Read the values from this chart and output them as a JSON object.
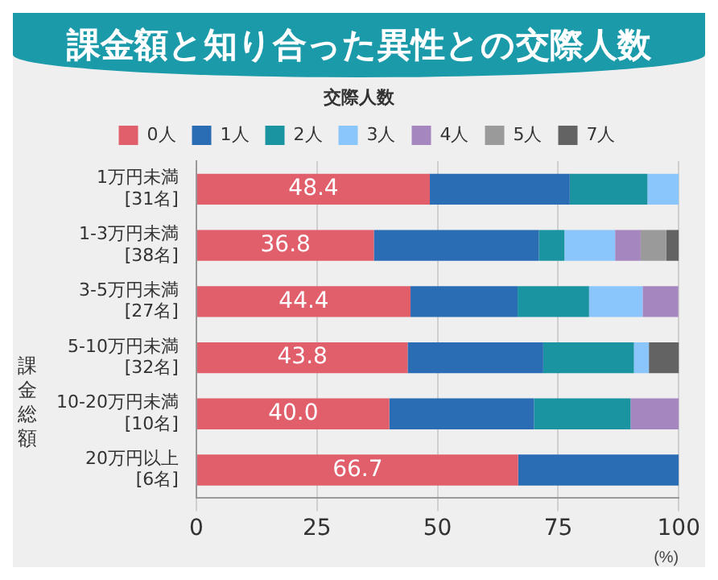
{
  "chart_data": {
    "type": "bar",
    "orientation": "horizontal",
    "stacked": true,
    "title": "課金額と知り合った異性との交際人数",
    "ylabel": "課金総額",
    "xlabel": "(%)",
    "legend_title": "交際人数",
    "legend": "top",
    "categories": [
      "1万円未満\n[31名]",
      "1-3万円未満\n[38名]",
      "3-5万円未満\n[27名]",
      "5-10万円未満\n[32名]",
      "10-20万円未満\n[10名]",
      "20万円以上\n[6名]"
    ],
    "series": [
      {
        "name": "0人",
        "color": "#e05f6b",
        "values": [
          48.4,
          36.8,
          44.4,
          43.8,
          40.0,
          66.7
        ],
        "value_labels": [
          "48.4",
          "36.8",
          "44.4",
          "43.8",
          "40.0",
          "66.7"
        ]
      },
      {
        "name": "1人",
        "color": "#2a6db5",
        "values": [
          29.0,
          34.2,
          22.2,
          28.1,
          30.0,
          33.3
        ]
      },
      {
        "name": "2人",
        "color": "#1b94a1",
        "values": [
          16.1,
          5.3,
          14.8,
          18.8,
          20.0,
          0
        ]
      },
      {
        "name": "3人",
        "color": "#8ac6fb",
        "values": [
          6.5,
          10.5,
          11.1,
          3.1,
          0,
          0
        ]
      },
      {
        "name": "4人",
        "color": "#a686bf",
        "values": [
          0,
          5.3,
          7.4,
          0,
          10.0,
          0
        ]
      },
      {
        "name": "5人",
        "color": "#9a9a9a",
        "values": [
          0,
          5.3,
          0,
          0,
          0,
          0
        ]
      },
      {
        "name": "7人",
        "color": "#636363",
        "values": [
          0,
          2.6,
          0,
          6.3,
          0,
          0
        ]
      }
    ],
    "xlim": [
      0,
      100
    ],
    "xticks": [
      0,
      25,
      50,
      75,
      100
    ],
    "grid": "x"
  }
}
